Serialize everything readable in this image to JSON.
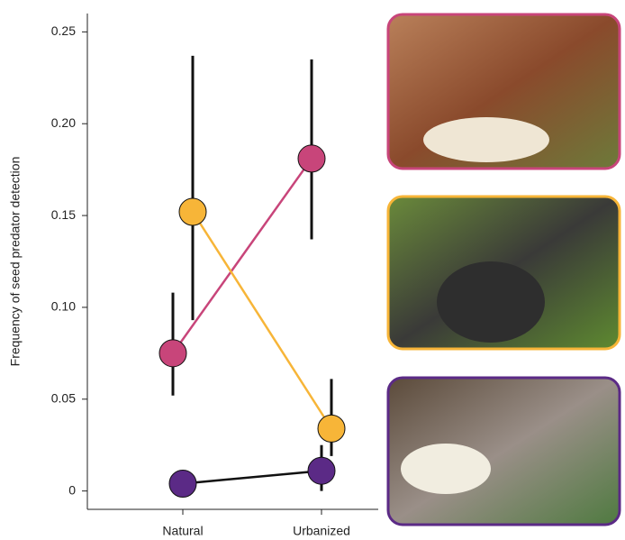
{
  "chart_data": {
    "type": "dot",
    "y_label": "Frequency of seed predator detection",
    "categories": [
      "Natural",
      "Urbanized"
    ],
    "series": [
      {
        "color": "#c8457a",
        "values": [
          0.075,
          0.181
        ],
        "lower": [
          0.052,
          0.137
        ],
        "upper": [
          0.108,
          0.235
        ]
      },
      {
        "color": "#f7b538",
        "values": [
          0.152,
          0.034
        ],
        "lower": [
          0.093,
          0.019
        ],
        "upper": [
          0.237,
          0.061
        ]
      },
      {
        "color": "#5b2a86",
        "values": [
          0.004,
          0.011
        ],
        "lower": [
          null,
          0.0
        ],
        "upper": [
          null,
          0.025
        ]
      }
    ],
    "ylim": [
      -0.01,
      0.26
    ],
    "yticks": [
      0,
      0.05,
      {
        "value": 0.1,
        "label": "0.10"
      },
      0.15,
      {
        "value": 0.2,
        "label": "0.20"
      },
      0.25
    ]
  }
}
